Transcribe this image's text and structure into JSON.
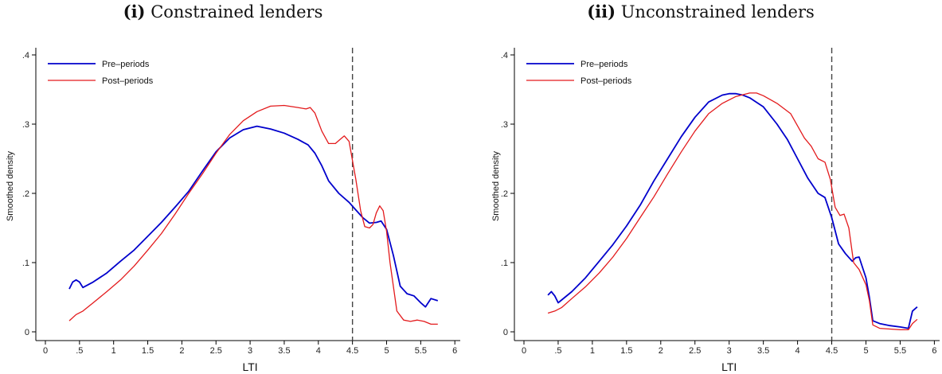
{
  "chart_data": [
    {
      "type": "line",
      "panel_label": "(i)",
      "title": "Constrained lenders",
      "xlabel": "LTI",
      "ylabel": "Smoothed density",
      "xlim": [
        0,
        6
      ],
      "ylim": [
        0,
        0.4
      ],
      "xticks": [
        0,
        0.5,
        1,
        1.5,
        2,
        2.5,
        3,
        3.5,
        4,
        4.5,
        5,
        5.5,
        6
      ],
      "xtick_labels": [
        "0",
        ".5",
        "1",
        "1.5",
        "2",
        "2.5",
        "3",
        "3.5",
        "4",
        "4.5",
        "5",
        "5.5",
        "6"
      ],
      "yticks": [
        0,
        0.1,
        0.2,
        0.3,
        0.4
      ],
      "ytick_labels": [
        "0",
        ".1",
        ".2",
        ".3",
        ".4"
      ],
      "vline": 4.5,
      "legend_position": "top-left",
      "series": [
        {
          "name": "Pre–periods",
          "color": "#0000cc",
          "x": [
            0.35,
            0.4,
            0.45,
            0.5,
            0.55,
            0.7,
            0.9,
            1.1,
            1.3,
            1.5,
            1.7,
            1.9,
            2.1,
            2.3,
            2.5,
            2.7,
            2.9,
            3.1,
            3.3,
            3.5,
            3.7,
            3.85,
            3.95,
            4.05,
            4.15,
            4.3,
            4.45,
            4.55,
            4.65,
            4.75,
            4.85,
            4.92,
            5.0,
            5.1,
            5.2,
            5.3,
            5.4,
            5.5,
            5.57,
            5.65,
            5.75
          ],
          "y": [
            0.062,
            0.072,
            0.075,
            0.072,
            0.064,
            0.072,
            0.085,
            0.102,
            0.118,
            0.138,
            0.158,
            0.18,
            0.203,
            0.232,
            0.26,
            0.28,
            0.292,
            0.297,
            0.293,
            0.287,
            0.278,
            0.27,
            0.258,
            0.24,
            0.218,
            0.2,
            0.187,
            0.176,
            0.165,
            0.157,
            0.158,
            0.16,
            0.148,
            0.11,
            0.066,
            0.055,
            0.052,
            0.042,
            0.036,
            0.048,
            0.045
          ]
        },
        {
          "name": "Post–periods",
          "color": "#e31a1c",
          "x": [
            0.35,
            0.45,
            0.55,
            0.7,
            0.9,
            1.1,
            1.3,
            1.5,
            1.7,
            1.9,
            2.1,
            2.3,
            2.5,
            2.7,
            2.9,
            3.1,
            3.3,
            3.5,
            3.7,
            3.82,
            3.88,
            3.95,
            4.05,
            4.15,
            4.25,
            4.32,
            4.38,
            4.45,
            4.55,
            4.62,
            4.68,
            4.75,
            4.8,
            4.85,
            4.9,
            4.95,
            5.0,
            5.05,
            5.1,
            5.15,
            5.25,
            5.35,
            5.45,
            5.55,
            5.65,
            5.75
          ],
          "y": [
            0.016,
            0.025,
            0.03,
            0.042,
            0.058,
            0.075,
            0.095,
            0.118,
            0.142,
            0.17,
            0.2,
            0.228,
            0.258,
            0.285,
            0.305,
            0.318,
            0.326,
            0.327,
            0.324,
            0.322,
            0.324,
            0.316,
            0.29,
            0.272,
            0.272,
            0.278,
            0.283,
            0.275,
            0.22,
            0.175,
            0.152,
            0.15,
            0.155,
            0.172,
            0.182,
            0.175,
            0.145,
            0.1,
            0.065,
            0.03,
            0.017,
            0.015,
            0.017,
            0.015,
            0.011,
            0.011
          ]
        }
      ]
    },
    {
      "type": "line",
      "panel_label": "(ii)",
      "title": "Unconstrained lenders",
      "xlabel": "LTI",
      "ylabel": "Smoothed density",
      "xlim": [
        0,
        6
      ],
      "ylim": [
        0,
        0.4
      ],
      "xticks": [
        0,
        0.5,
        1,
        1.5,
        2,
        2.5,
        3,
        3.5,
        4,
        4.5,
        5,
        5.5,
        6
      ],
      "xtick_labels": [
        "0",
        ".5",
        "1",
        "1.5",
        "2",
        "2.5",
        "3",
        "3.5",
        "4",
        "4.5",
        "5",
        "5.5",
        "6"
      ],
      "yticks": [
        0,
        0.1,
        0.2,
        0.3,
        0.4
      ],
      "ytick_labels": [
        "0",
        ".1",
        ".2",
        ".3",
        ".4"
      ],
      "vline": 4.5,
      "legend_position": "top-left",
      "series": [
        {
          "name": "Pre–periods",
          "color": "#0000cc",
          "x": [
            0.35,
            0.4,
            0.45,
            0.5,
            0.7,
            0.9,
            1.1,
            1.3,
            1.5,
            1.7,
            1.9,
            2.1,
            2.3,
            2.5,
            2.7,
            2.9,
            3.0,
            3.1,
            3.2,
            3.3,
            3.5,
            3.7,
            3.85,
            4.0,
            4.15,
            4.3,
            4.4,
            4.5,
            4.6,
            4.7,
            4.8,
            4.85,
            4.9,
            4.95,
            5.0,
            5.05,
            5.1,
            5.2,
            5.35,
            5.5,
            5.62,
            5.68,
            5.75
          ],
          "y": [
            0.053,
            0.058,
            0.052,
            0.042,
            0.058,
            0.078,
            0.102,
            0.126,
            0.153,
            0.183,
            0.218,
            0.25,
            0.282,
            0.31,
            0.332,
            0.342,
            0.344,
            0.344,
            0.342,
            0.338,
            0.325,
            0.3,
            0.278,
            0.25,
            0.222,
            0.2,
            0.194,
            0.165,
            0.127,
            0.113,
            0.102,
            0.107,
            0.108,
            0.093,
            0.078,
            0.05,
            0.016,
            0.012,
            0.009,
            0.007,
            0.005,
            0.03,
            0.036
          ]
        },
        {
          "name": "Post–periods",
          "color": "#e31a1c",
          "x": [
            0.35,
            0.45,
            0.55,
            0.7,
            0.9,
            1.1,
            1.3,
            1.5,
            1.7,
            1.9,
            2.1,
            2.3,
            2.5,
            2.7,
            2.9,
            3.1,
            3.3,
            3.4,
            3.5,
            3.7,
            3.9,
            4.1,
            4.2,
            4.3,
            4.4,
            4.48,
            4.55,
            4.62,
            4.68,
            4.75,
            4.82,
            4.9,
            5.0,
            5.05,
            5.1,
            5.2,
            5.35,
            5.5,
            5.62,
            5.68,
            5.75
          ],
          "y": [
            0.027,
            0.03,
            0.035,
            0.048,
            0.065,
            0.085,
            0.108,
            0.135,
            0.165,
            0.195,
            0.228,
            0.26,
            0.29,
            0.315,
            0.33,
            0.34,
            0.345,
            0.345,
            0.341,
            0.33,
            0.315,
            0.28,
            0.268,
            0.25,
            0.245,
            0.22,
            0.18,
            0.168,
            0.17,
            0.15,
            0.1,
            0.09,
            0.068,
            0.045,
            0.01,
            0.005,
            0.004,
            0.003,
            0.003,
            0.012,
            0.018
          ]
        }
      ]
    }
  ]
}
